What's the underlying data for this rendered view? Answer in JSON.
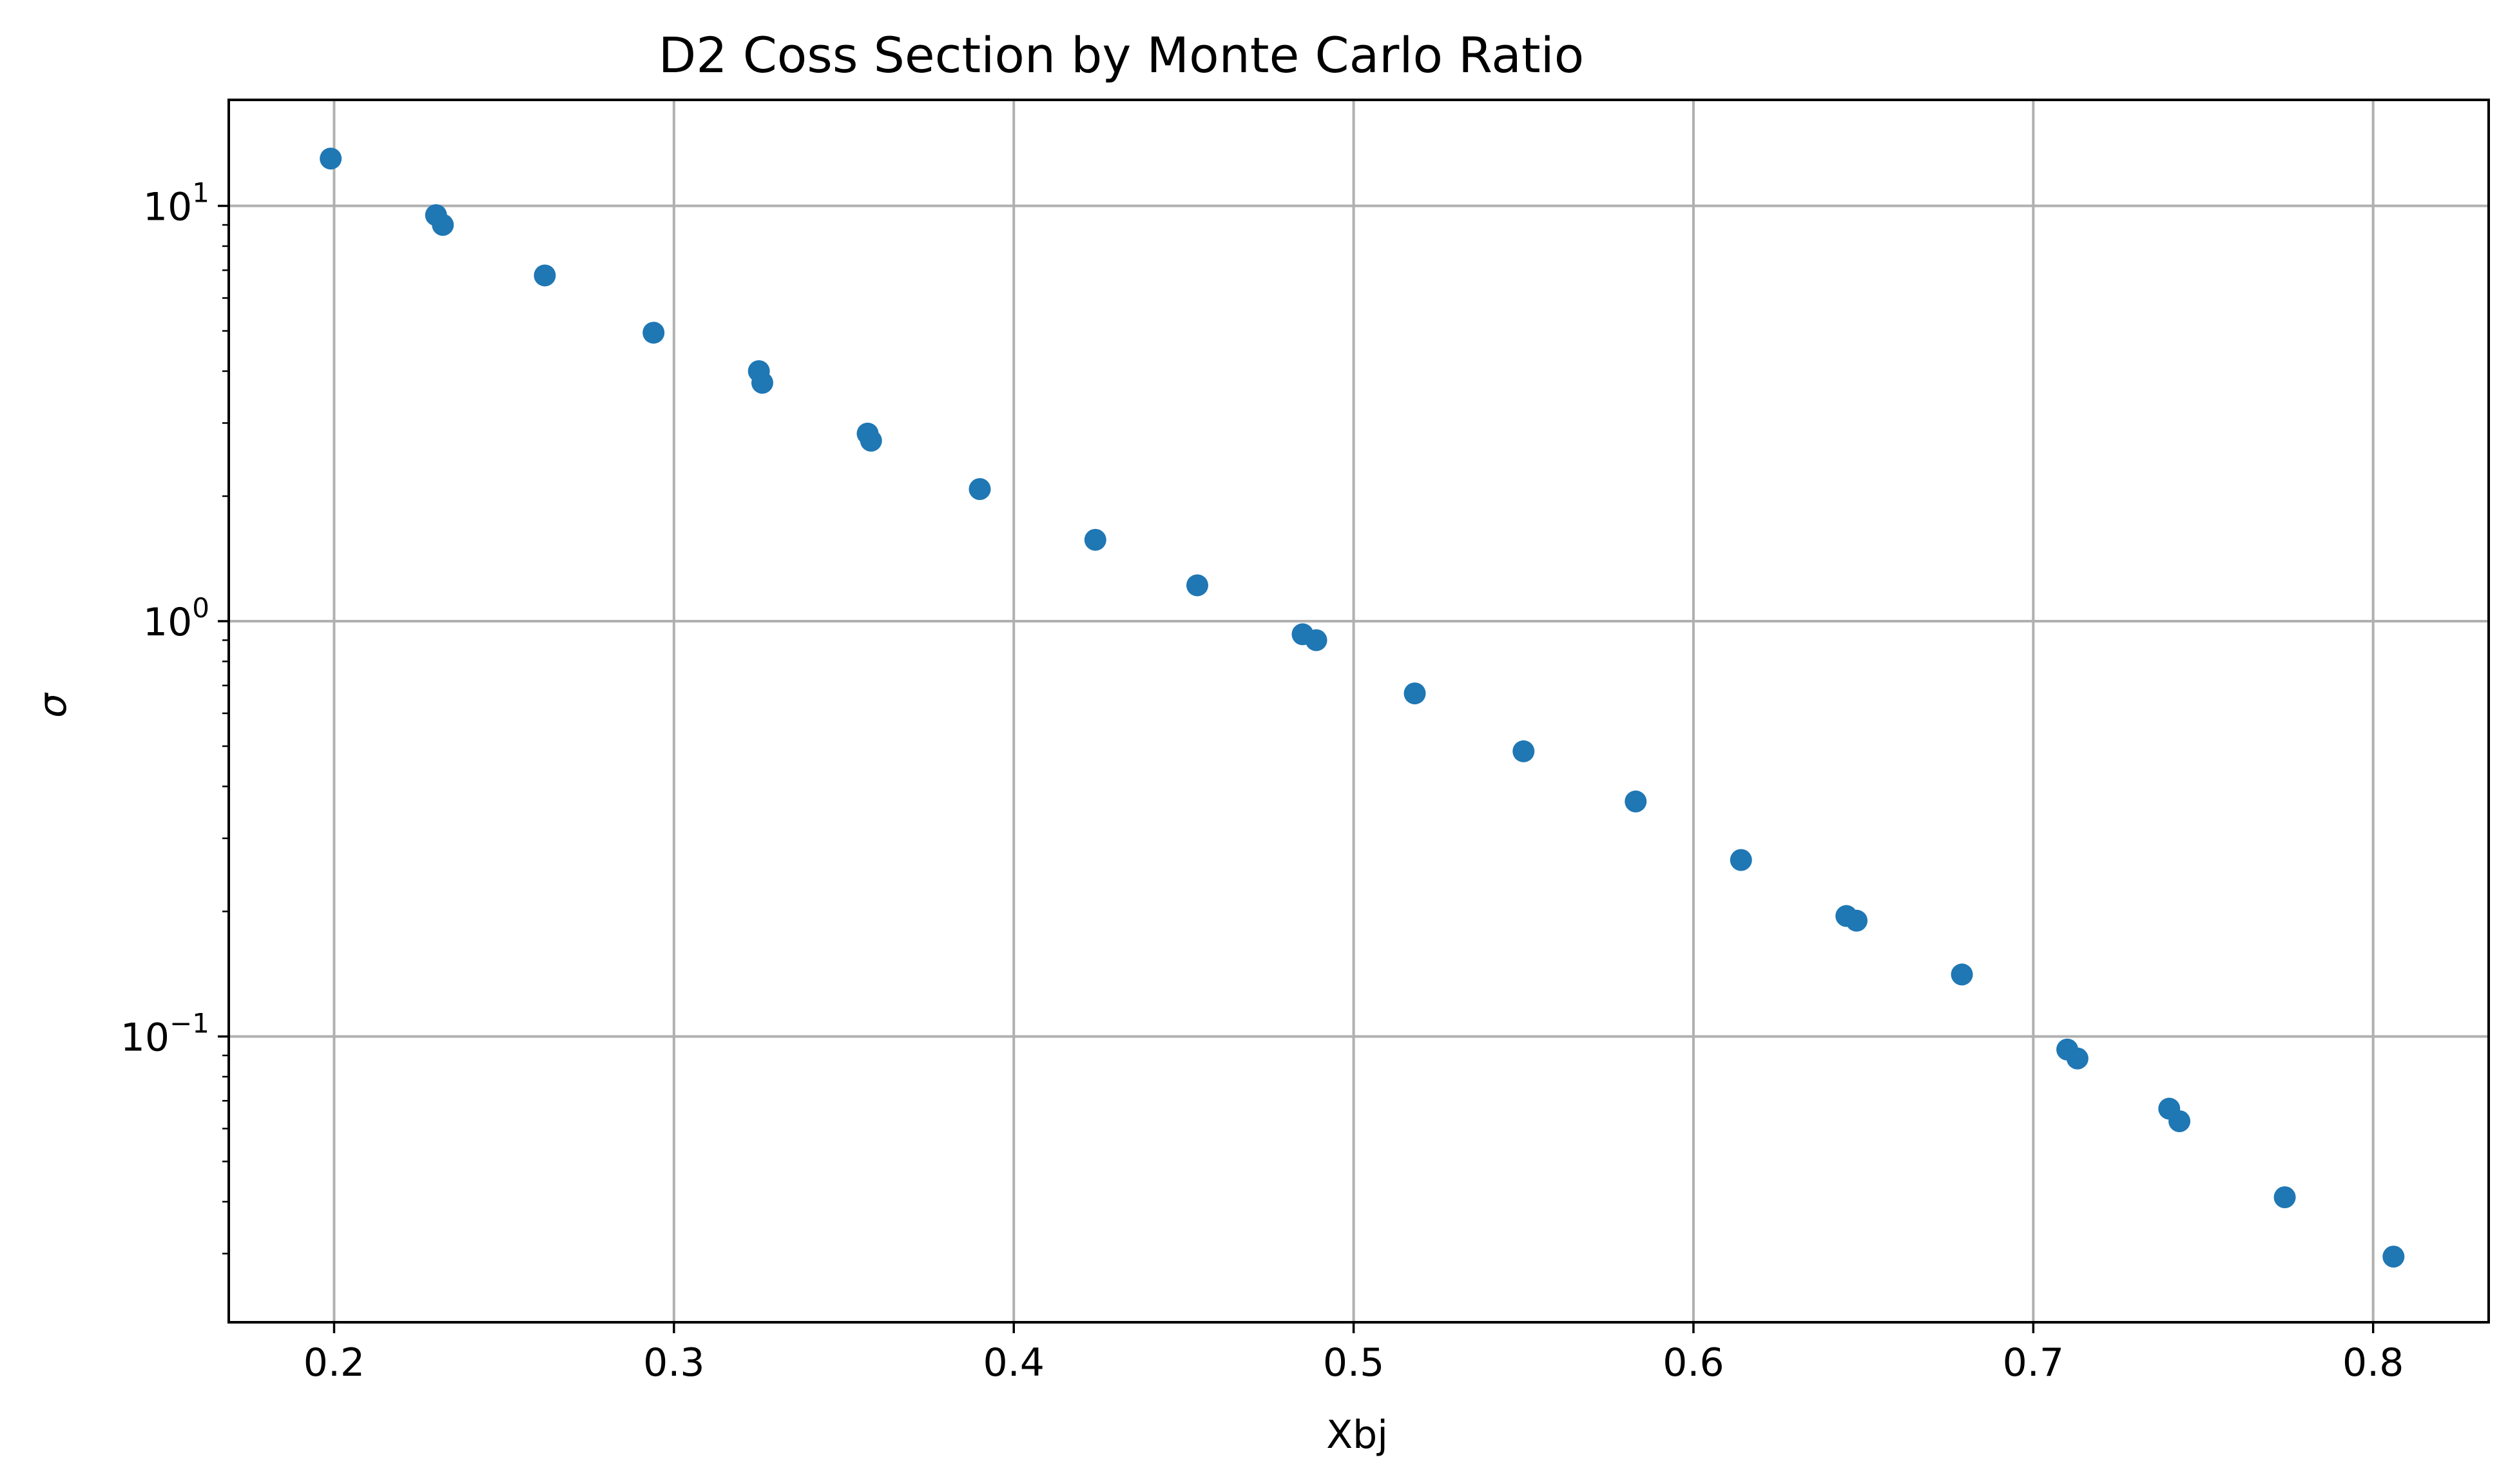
{
  "chart_data": {
    "type": "scatter",
    "title": "D2 Coss Section by Monte Carlo Ratio",
    "xlabel": "Xbj",
    "ylabel": "σ",
    "xlim": [
      0.169,
      0.834
    ],
    "ylim": [
      0.0205,
      18.0
    ],
    "yscale": "log",
    "grid": true,
    "color": "#1f77b4",
    "x_ticks": [
      {
        "value": 0.2,
        "label": "0.2"
      },
      {
        "value": 0.3,
        "label": "0.3"
      },
      {
        "value": 0.4,
        "label": "0.4"
      },
      {
        "value": 0.5,
        "label": "0.5"
      },
      {
        "value": 0.6,
        "label": "0.6"
      },
      {
        "value": 0.7,
        "label": "0.7"
      },
      {
        "value": 0.8,
        "label": "0.8"
      }
    ],
    "y_ticks": [
      {
        "value": 10,
        "base": "10",
        "exp": "1"
      },
      {
        "value": 1,
        "base": "10",
        "exp": "0"
      },
      {
        "value": 0.1,
        "base": "10",
        "exp": "−1"
      }
    ],
    "points": [
      {
        "x": 0.199,
        "y": 13.0
      },
      {
        "x": 0.23,
        "y": 9.5
      },
      {
        "x": 0.232,
        "y": 9.0
      },
      {
        "x": 0.262,
        "y": 6.8
      },
      {
        "x": 0.294,
        "y": 4.95
      },
      {
        "x": 0.325,
        "y": 4.0
      },
      {
        "x": 0.326,
        "y": 3.75
      },
      {
        "x": 0.357,
        "y": 2.83
      },
      {
        "x": 0.358,
        "y": 2.72
      },
      {
        "x": 0.39,
        "y": 2.08
      },
      {
        "x": 0.424,
        "y": 1.57
      },
      {
        "x": 0.454,
        "y": 1.22
      },
      {
        "x": 0.485,
        "y": 0.93
      },
      {
        "x": 0.489,
        "y": 0.9
      },
      {
        "x": 0.518,
        "y": 0.67
      },
      {
        "x": 0.55,
        "y": 0.486
      },
      {
        "x": 0.583,
        "y": 0.368
      },
      {
        "x": 0.614,
        "y": 0.266
      },
      {
        "x": 0.645,
        "y": 0.195
      },
      {
        "x": 0.648,
        "y": 0.19
      },
      {
        "x": 0.679,
        "y": 0.141
      },
      {
        "x": 0.71,
        "y": 0.093
      },
      {
        "x": 0.713,
        "y": 0.0885
      },
      {
        "x": 0.74,
        "y": 0.067
      },
      {
        "x": 0.743,
        "y": 0.0625
      },
      {
        "x": 0.774,
        "y": 0.041
      },
      {
        "x": 0.806,
        "y": 0.0295
      }
    ]
  }
}
